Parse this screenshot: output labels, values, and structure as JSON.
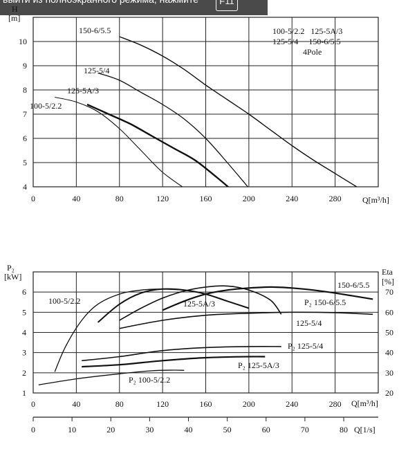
{
  "banner": {
    "text": "выйти из полноэкранного режима, нажмите",
    "key": "F11"
  },
  "chart_data": [
    {
      "type": "line",
      "title": "",
      "xlabel": "Q[m³/h]",
      "ylabel_line1": "H",
      "ylabel_line2": "[m]",
      "xlim": [
        0,
        320
      ],
      "ylim": [
        4,
        11
      ],
      "xticks": [
        0,
        40,
        80,
        120,
        160,
        200,
        240,
        280
      ],
      "yticks": [
        4,
        5,
        6,
        7,
        8,
        9,
        10
      ],
      "grid": true,
      "legend_lines": [
        "100-5/2.2   125-5A/3",
        "125-5/4     150-6/5.5",
        "4Pole"
      ],
      "series": [
        {
          "name": "100-5/2.2",
          "x": [
            20,
            40,
            60,
            80,
            100,
            120,
            140
          ],
          "y": [
            7.7,
            7.5,
            7.1,
            6.4,
            5.5,
            4.6,
            3.95
          ]
        },
        {
          "name": "125-5A/3",
          "x": [
            50,
            70,
            90,
            110,
            130,
            150,
            170,
            182
          ],
          "y": [
            7.4,
            7.0,
            6.6,
            6.1,
            5.6,
            5.1,
            4.4,
            3.95
          ]
        },
        {
          "name": "125-5/4",
          "x": [
            60,
            80,
            100,
            120,
            140,
            160,
            180,
            200
          ],
          "y": [
            8.7,
            8.4,
            7.9,
            7.4,
            6.8,
            6.0,
            5.0,
            3.95
          ]
        },
        {
          "name": "150-6/5.5",
          "x": [
            80,
            100,
            120,
            140,
            160,
            180,
            200,
            220,
            240,
            260,
            280,
            300
          ],
          "y": [
            10.2,
            9.85,
            9.4,
            8.85,
            8.2,
            7.6,
            7.0,
            6.35,
            5.7,
            5.1,
            4.55,
            4.0
          ]
        }
      ],
      "curve_labels": [
        "150-6/5.5",
        "125-5/4",
        "125-5A/3",
        "100-5/2.2"
      ]
    },
    {
      "type": "line",
      "title": "",
      "xlabel": "Q[m³/h]",
      "x2label": "Q[1/s]",
      "ylabel_line1": "P₂",
      "ylabel_line2": "[kW]",
      "y2label_line1": "Eta",
      "y2label_line2": "[%]",
      "xlim": [
        0,
        320
      ],
      "ylim": [
        1,
        7
      ],
      "y2lim": [
        20,
        80
      ],
      "x2lim": [
        0,
        88.9
      ],
      "xticks": [
        0,
        40,
        80,
        120,
        160,
        200,
        240,
        280
      ],
      "yticks": [
        1,
        2,
        3,
        4,
        5,
        6
      ],
      "y2ticks": [
        20,
        30,
        40,
        50,
        60,
        70
      ],
      "x2ticks": [
        0,
        10,
        20,
        30,
        40,
        50,
        60,
        70,
        80
      ],
      "grid": true,
      "power_series": [
        {
          "name": "P₂ 100-5/2.2",
          "x": [
            5,
            40,
            80,
            110,
            130,
            140
          ],
          "y": [
            1.4,
            1.7,
            1.95,
            2.1,
            2.13,
            2.12
          ]
        },
        {
          "name": "P₂ 125-5A/3",
          "x": [
            45,
            80,
            120,
            160,
            200,
            215
          ],
          "y": [
            2.3,
            2.4,
            2.6,
            2.75,
            2.8,
            2.8
          ]
        },
        {
          "name": "P₂ 125-5/4",
          "x": [
            45,
            80,
            120,
            160,
            200,
            230
          ],
          "y": [
            2.6,
            2.8,
            3.1,
            3.25,
            3.3,
            3.3
          ]
        },
        {
          "name": "P₂ 150-6/5.5",
          "x": [
            80,
            120,
            160,
            200,
            240,
            280,
            315
          ],
          "y": [
            4.2,
            4.6,
            4.85,
            4.95,
            5.0,
            4.98,
            4.9
          ]
        }
      ],
      "eta_series": [
        {
          "name": "100-5/2.2",
          "x": [
            20,
            30,
            45,
            60,
            80,
            100,
            120,
            140
          ],
          "y": [
            30.5,
            43,
            56,
            64,
            69,
            71,
            71.5,
            71
          ]
        },
        {
          "name": "125-5A/3",
          "x": [
            60,
            80,
            100,
            120,
            140,
            160,
            180,
            200
          ],
          "y": [
            55,
            64,
            69.5,
            71.5,
            71,
            69,
            65.5,
            62
          ]
        },
        {
          "name": "125-5/4",
          "x": [
            80,
            100,
            120,
            140,
            160,
            180,
            200,
            220,
            230
          ],
          "y": [
            56,
            62,
            67,
            70.5,
            72.5,
            73,
            71,
            66,
            59
          ]
        },
        {
          "name": "150-6/5.5",
          "x": [
            120,
            140,
            160,
            180,
            200,
            220,
            240,
            260,
            280,
            315
          ],
          "y": [
            61,
            65.5,
            69,
            71,
            72,
            72.5,
            72,
            71,
            69.5,
            66.5
          ]
        }
      ],
      "curve_labels": [
        "100-5/2.2",
        "125-5A/3",
        "125-5/4",
        "150-6/5.5"
      ]
    }
  ]
}
